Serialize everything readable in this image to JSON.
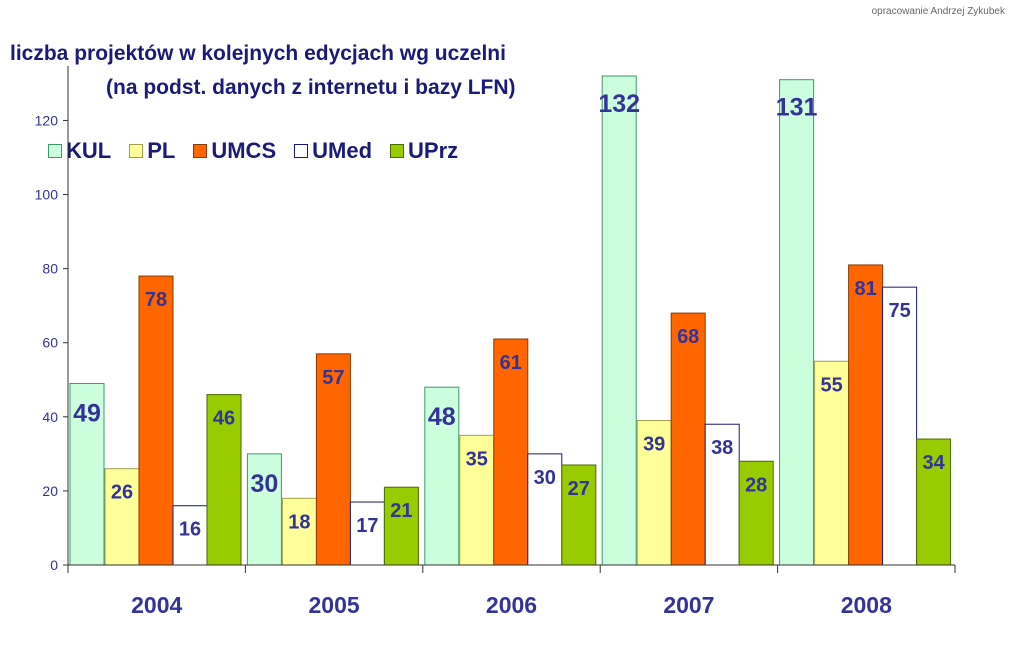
{
  "credit": "opracowanie Andrzej Zykubek",
  "title_line1": "liczba projektów w kolejnych edycjach wg uczelni",
  "title_line2": "(na podst. danych z internetu i bazy LFN)",
  "chart_data": {
    "type": "bar",
    "categories": [
      "2004",
      "2005",
      "2006",
      "2007",
      "2008"
    ],
    "series": [
      {
        "name": "KUL",
        "values": [
          49,
          30,
          48,
          132,
          131
        ],
        "color": "#ccffdd",
        "stroke": "#3a9a6a"
      },
      {
        "name": "PL",
        "values": [
          26,
          18,
          35,
          39,
          55
        ],
        "color": "#ffff99",
        "stroke": "#a0a050"
      },
      {
        "name": "UMCS",
        "values": [
          78,
          57,
          61,
          68,
          81
        ],
        "color": "#ff6600",
        "stroke": "#8a3a00"
      },
      {
        "name": "UMed",
        "values": [
          16,
          17,
          30,
          38,
          75
        ],
        "color": "#ffffff",
        "stroke": "#1a1a78"
      },
      {
        "name": "UPrz",
        "values": [
          46,
          21,
          27,
          28,
          34
        ],
        "color": "#99cc00",
        "stroke": "#4a6a00"
      }
    ],
    "ylim": [
      0,
      132
    ],
    "yticks": [
      0,
      20,
      40,
      60,
      80,
      100,
      120
    ],
    "grid": false,
    "legend_position": "top-left",
    "label_color": "#333399"
  }
}
